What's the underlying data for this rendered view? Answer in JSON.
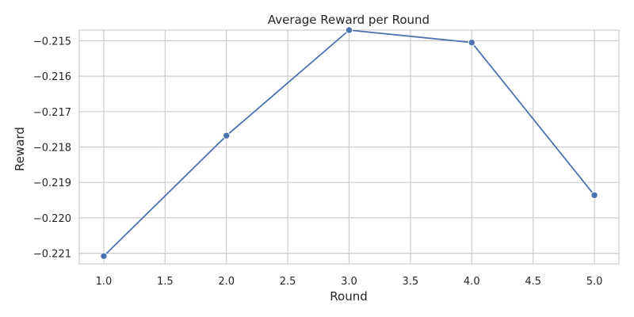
{
  "chart_data": {
    "type": "line",
    "title": "Average Reward per Round",
    "xlabel": "Round",
    "ylabel": "Reward",
    "xlim": [
      0.8,
      5.2
    ],
    "ylim": [
      -0.2213,
      -0.2147
    ],
    "xticks": [
      1.0,
      1.5,
      2.0,
      2.5,
      3.0,
      3.5,
      4.0,
      4.5,
      5.0
    ],
    "xtick_labels": [
      "1.0",
      "1.5",
      "2.0",
      "2.5",
      "3.0",
      "3.5",
      "4.0",
      "4.5",
      "5.0"
    ],
    "yticks": [
      -0.221,
      -0.22,
      -0.219,
      -0.218,
      -0.217,
      -0.216,
      -0.215
    ],
    "ytick_labels": [
      "−0.221",
      "−0.220",
      "−0.219",
      "−0.218",
      "−0.217",
      "−0.216",
      "−0.215"
    ],
    "grid": true,
    "series": [
      {
        "x": [
          1,
          2,
          3,
          4,
          5
        ],
        "y": [
          -0.22108,
          -0.21768,
          -0.2147,
          -0.21505,
          -0.21936
        ],
        "color": "#4c72b0",
        "marker": "circle"
      }
    ]
  }
}
